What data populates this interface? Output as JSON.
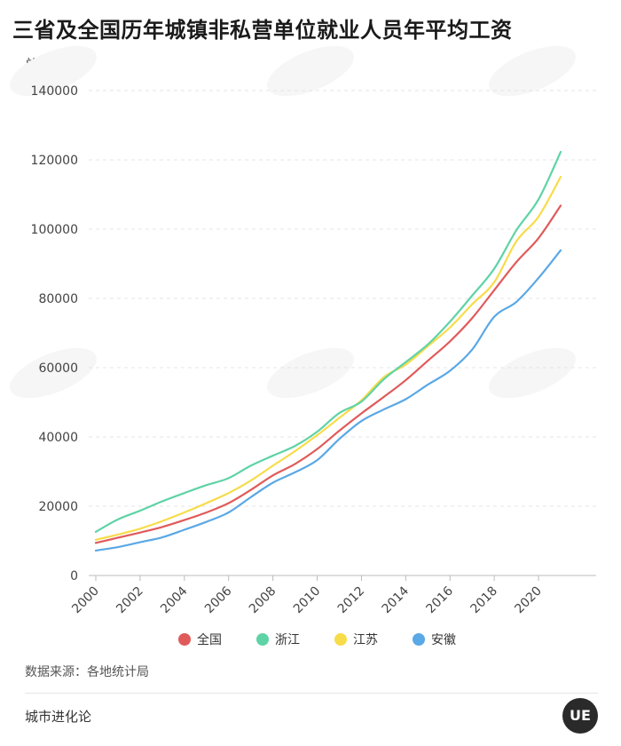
{
  "title": "三省及全国历年城镇非私营单位就业人员年平均工资",
  "unit_label": "单位：元",
  "source": "数据来源：各地统计局",
  "brand": "城市进化论",
  "logo_text": "UE",
  "chart_data": {
    "type": "line",
    "x": [
      2000,
      2001,
      2002,
      2003,
      2004,
      2005,
      2006,
      2007,
      2008,
      2009,
      2010,
      2011,
      2012,
      2013,
      2014,
      2015,
      2016,
      2017,
      2018,
      2019,
      2020,
      2021
    ],
    "x_tick_labels": [
      "2000",
      "2002",
      "2004",
      "2006",
      "2008",
      "2010",
      "2012",
      "2014",
      "2016",
      "2018",
      "2020"
    ],
    "ylim": [
      0,
      140000
    ],
    "y_ticks": [
      0,
      20000,
      40000,
      60000,
      80000,
      100000,
      120000,
      140000
    ],
    "grid": true,
    "legend_position": "bottom",
    "series": [
      {
        "name": "全国",
        "color": "#e05a5a",
        "values": [
          9400,
          10900,
          12400,
          14000,
          16000,
          18200,
          20900,
          24700,
          28900,
          32200,
          36500,
          41800,
          46800,
          51500,
          56400,
          62000,
          67600,
          74300,
          82400,
          90500,
          97400,
          106800
        ]
      },
      {
        "name": "浙江",
        "color": "#5fd3a6",
        "values": [
          12600,
          16200,
          18700,
          21400,
          23800,
          26100,
          28100,
          31700,
          34600,
          37400,
          41500,
          46900,
          50200,
          56600,
          61600,
          66700,
          73300,
          80800,
          88600,
          99700,
          108600,
          122300
        ]
      },
      {
        "name": "江苏",
        "color": "#f7dc4a",
        "values": [
          10300,
          11800,
          13500,
          15700,
          18200,
          20900,
          23800,
          27400,
          31700,
          35900,
          40500,
          45500,
          50600,
          57200,
          60900,
          66200,
          71600,
          78300,
          84700,
          96500,
          103600,
          115100
        ]
      },
      {
        "name": "安徽",
        "color": "#5aa8e6",
        "values": [
          7200,
          8200,
          9600,
          11000,
          13200,
          15500,
          18200,
          22600,
          26800,
          29800,
          33300,
          39400,
          44600,
          47900,
          50900,
          55100,
          59100,
          65200,
          74700,
          79000,
          85900,
          93900
        ]
      }
    ]
  }
}
